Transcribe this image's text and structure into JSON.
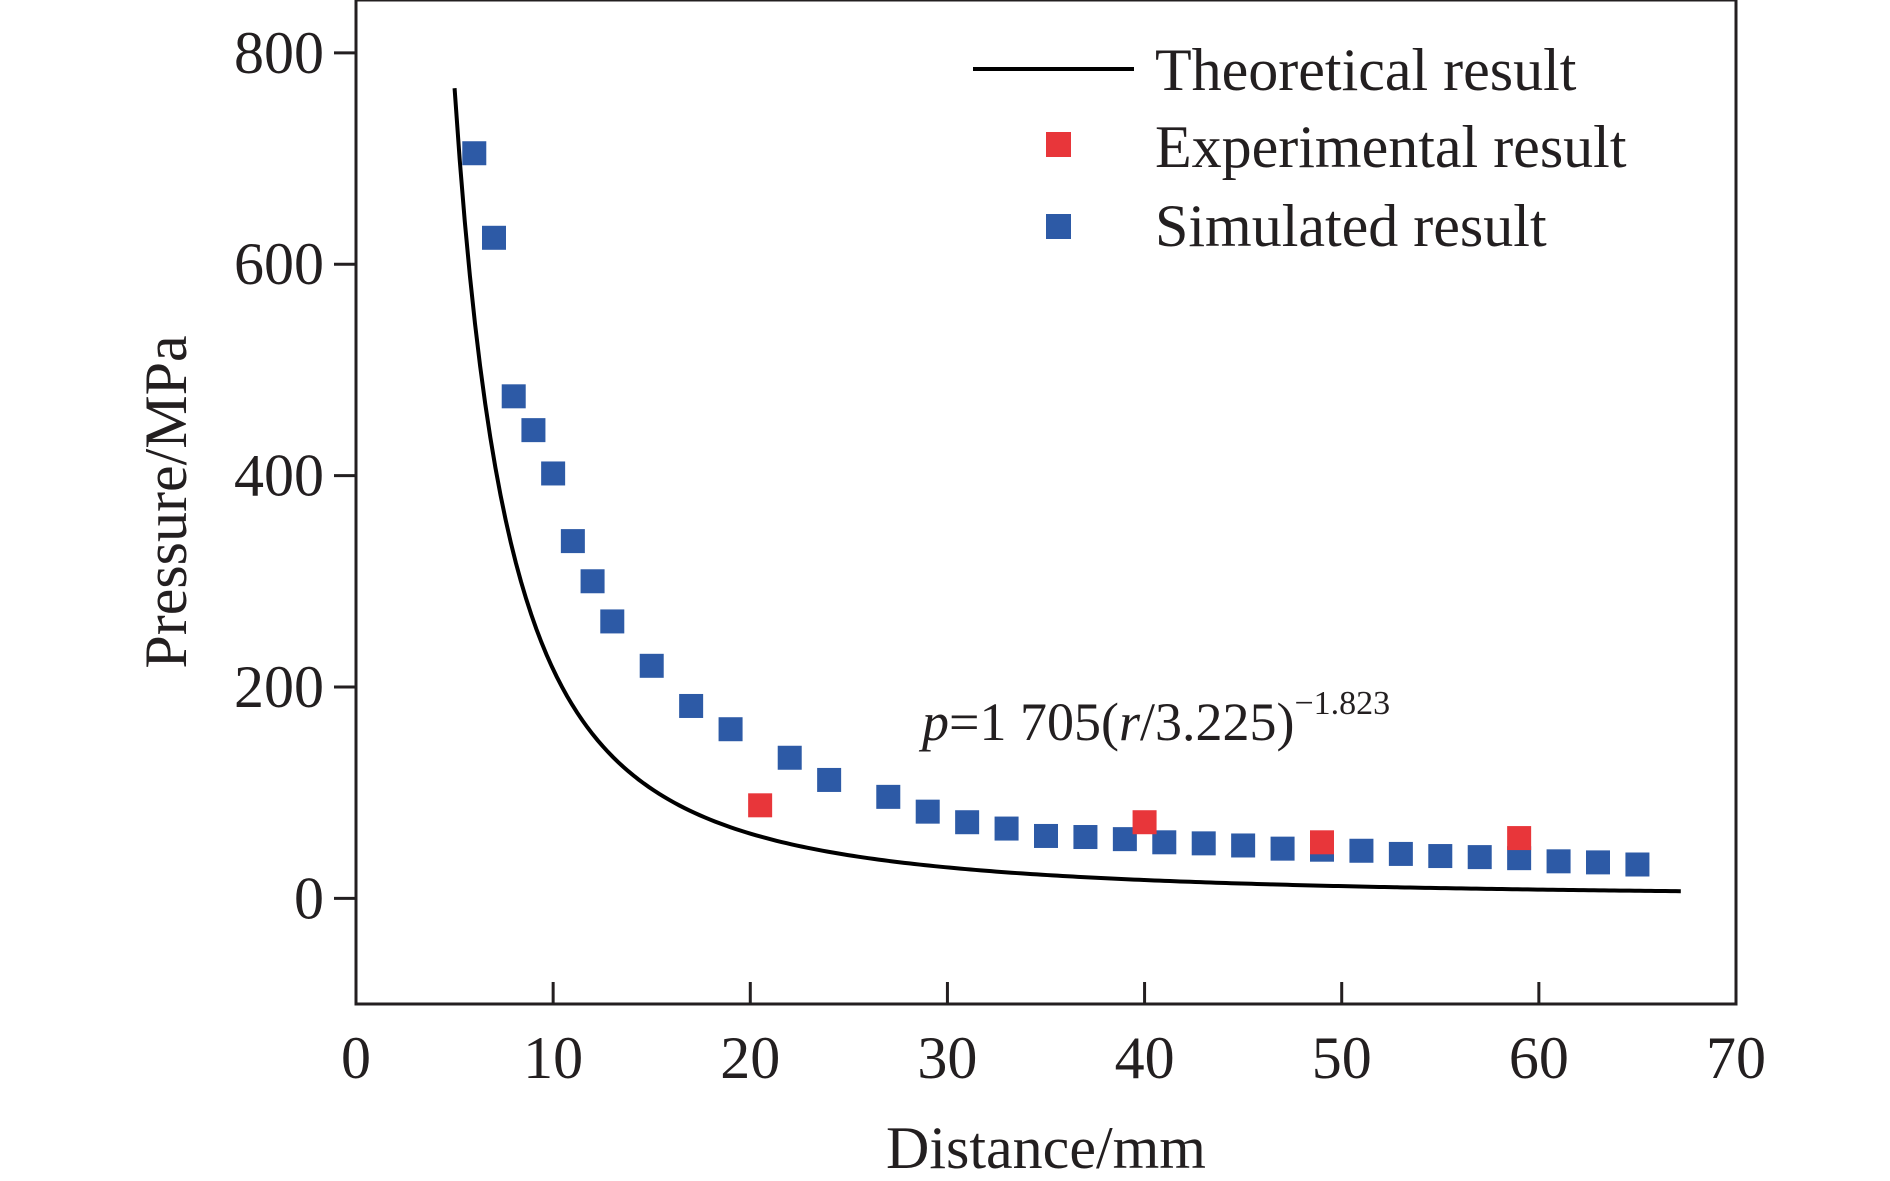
{
  "chart_data": {
    "type": "scatter",
    "xlabel": "Distance/mm",
    "ylabel": "Pressure/MPa",
    "xlim": [
      0,
      70
    ],
    "ylim": [
      -100,
      850
    ],
    "xticks": [
      0,
      10,
      20,
      30,
      40,
      50,
      60,
      70
    ],
    "yticks": [
      0,
      200,
      400,
      600,
      800
    ],
    "xtick_labels": [
      "0",
      "10",
      "20",
      "30",
      "40",
      "50",
      "60",
      "70"
    ],
    "ytick_labels": [
      "0",
      "200",
      "400",
      "600",
      "800"
    ],
    "grid": false,
    "legend_position": "top-right",
    "colors": {
      "theoretical": "#000000",
      "experimental": "#e8363a",
      "simulated": "#2d5aa6"
    },
    "series": [
      {
        "name": "Theoretical result",
        "kind": "line",
        "equation": {
          "coefficient": 1705,
          "ratio_divisor": 3.225,
          "exponent": -1.823
        },
        "x_range": [
          5,
          67.2
        ]
      },
      {
        "name": "Experimental result",
        "kind": "scatter",
        "x": [
          20.5,
          40,
          49,
          59
        ],
        "y": [
          88,
          72,
          53,
          57
        ]
      },
      {
        "name": "Simulated result",
        "kind": "scatter",
        "x": [
          6,
          7,
          8,
          9,
          10,
          11,
          12,
          13,
          15,
          17,
          19,
          22,
          24,
          27,
          29,
          31,
          33,
          35,
          37,
          39,
          41,
          43,
          45,
          47,
          49,
          51,
          53,
          55,
          57,
          59,
          61,
          63,
          65
        ],
        "y": [
          705,
          625,
          475,
          443,
          402,
          338,
          300,
          262,
          220,
          182,
          160,
          133,
          112,
          96,
          82,
          72,
          66,
          59,
          58,
          56,
          53,
          52,
          50,
          47,
          46,
          45,
          42,
          40,
          39,
          38,
          35,
          34,
          32
        ]
      }
    ],
    "annotation": {
      "p": "p",
      "eq1": "=1 705(",
      "r": "r",
      "eq2": "/3.225)",
      "exponent": "−1.823"
    }
  }
}
